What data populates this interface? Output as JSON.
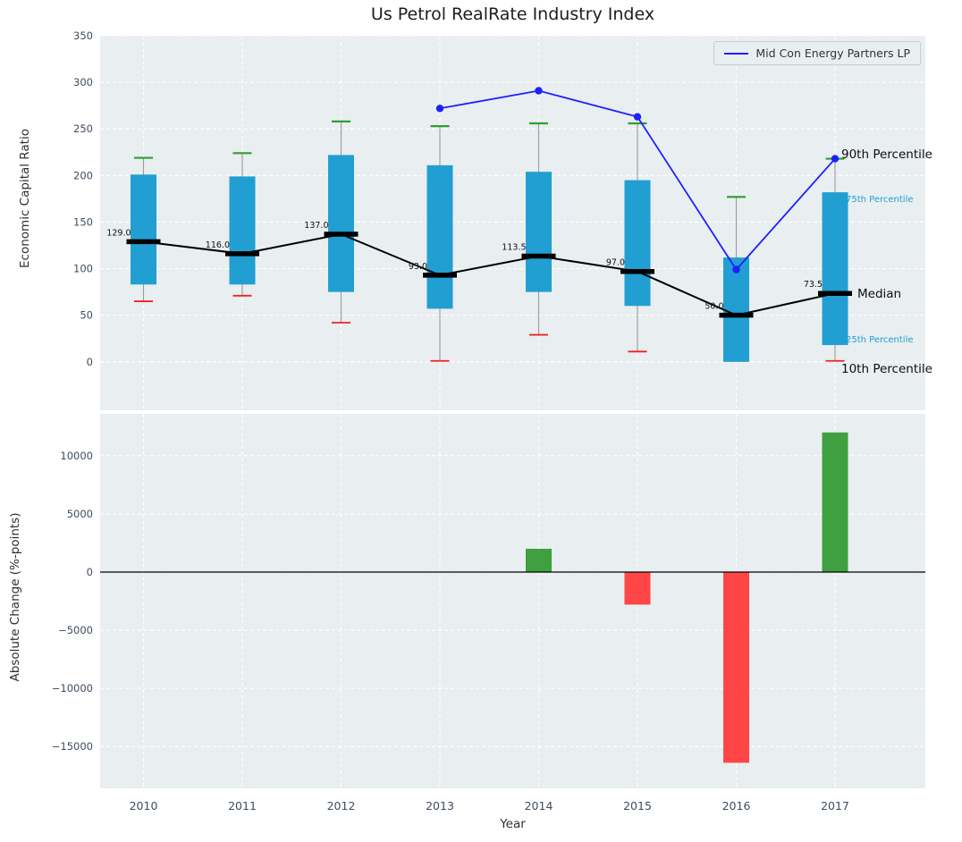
{
  "title": "Us Petrol RealRate Industry Index",
  "legend": {
    "label": "Mid Con Energy Partners LP"
  },
  "annotations": {
    "p90": "90th Percentile",
    "p75": "75th Percentile",
    "median": "Median",
    "p25": "25th Percentile",
    "p10": "10th Percentile"
  },
  "colors": {
    "axes_bg": "#e9eef0",
    "grid": "#ffffff",
    "tick": "#3d4d5f",
    "box": "#219fd3",
    "cap_top": "#2ca02c",
    "cap_bottom": "#ee2222",
    "whisker": "#9a9a9a",
    "median_line": "#000000",
    "company": "#1f1fff",
    "bar_up": "#3fa03f",
    "bar_down": "#ff4545"
  },
  "chart_data": [
    {
      "type": "boxplot+line",
      "title": "Us Petrol RealRate Industry Index",
      "ylabel": "Economic Capital Ratio",
      "ylim": [
        -52,
        350
      ],
      "yticks": [
        0,
        50,
        100,
        150,
        200,
        250,
        300,
        350
      ],
      "ytick_labels": [
        "0",
        "50",
        "100",
        "150",
        "200",
        "250",
        "300",
        "350"
      ],
      "categories": [
        "2010",
        "2011",
        "2012",
        "2013",
        "2014",
        "2015",
        "2016",
        "2017"
      ],
      "series": {
        "p90": [
          219,
          224,
          258,
          253,
          256,
          256,
          177,
          218
        ],
        "p75": [
          201,
          199,
          222,
          211,
          204,
          195,
          112,
          182
        ],
        "median": [
          129.0,
          116.0,
          137.0,
          93.0,
          113.5,
          97.0,
          50.0,
          73.5
        ],
        "p25": [
          83,
          83,
          75,
          57,
          75,
          60,
          0,
          18
        ],
        "p10": [
          65,
          71,
          42,
          1,
          29,
          11,
          1,
          1
        ],
        "company": [
          null,
          null,
          null,
          272,
          291,
          263,
          99,
          218
        ]
      },
      "median_labels": [
        "129.0",
        "116.0",
        "137.0",
        "93.0",
        "113.5",
        "97.0",
        "50.0",
        "73.5"
      ],
      "company_name": "Mid Con Energy Partners LP",
      "legend_position": "upper right",
      "grid": true
    },
    {
      "type": "bar",
      "ylabel": "Absolute Change (%-points)",
      "xlabel": "Year",
      "ylim": [
        -18600,
        13600
      ],
      "yticks": [
        10000,
        5000,
        0,
        -5000,
        -10000,
        -15000
      ],
      "ytick_labels": [
        "10000",
        "5000",
        "0",
        "−5000",
        "−10000",
        "−15000"
      ],
      "categories": [
        "2010",
        "2011",
        "2012",
        "2013",
        "2014",
        "2015",
        "2016",
        "2017"
      ],
      "values": [
        null,
        null,
        null,
        null,
        2000,
        -2800,
        -16400,
        12000
      ],
      "grid": true
    }
  ]
}
